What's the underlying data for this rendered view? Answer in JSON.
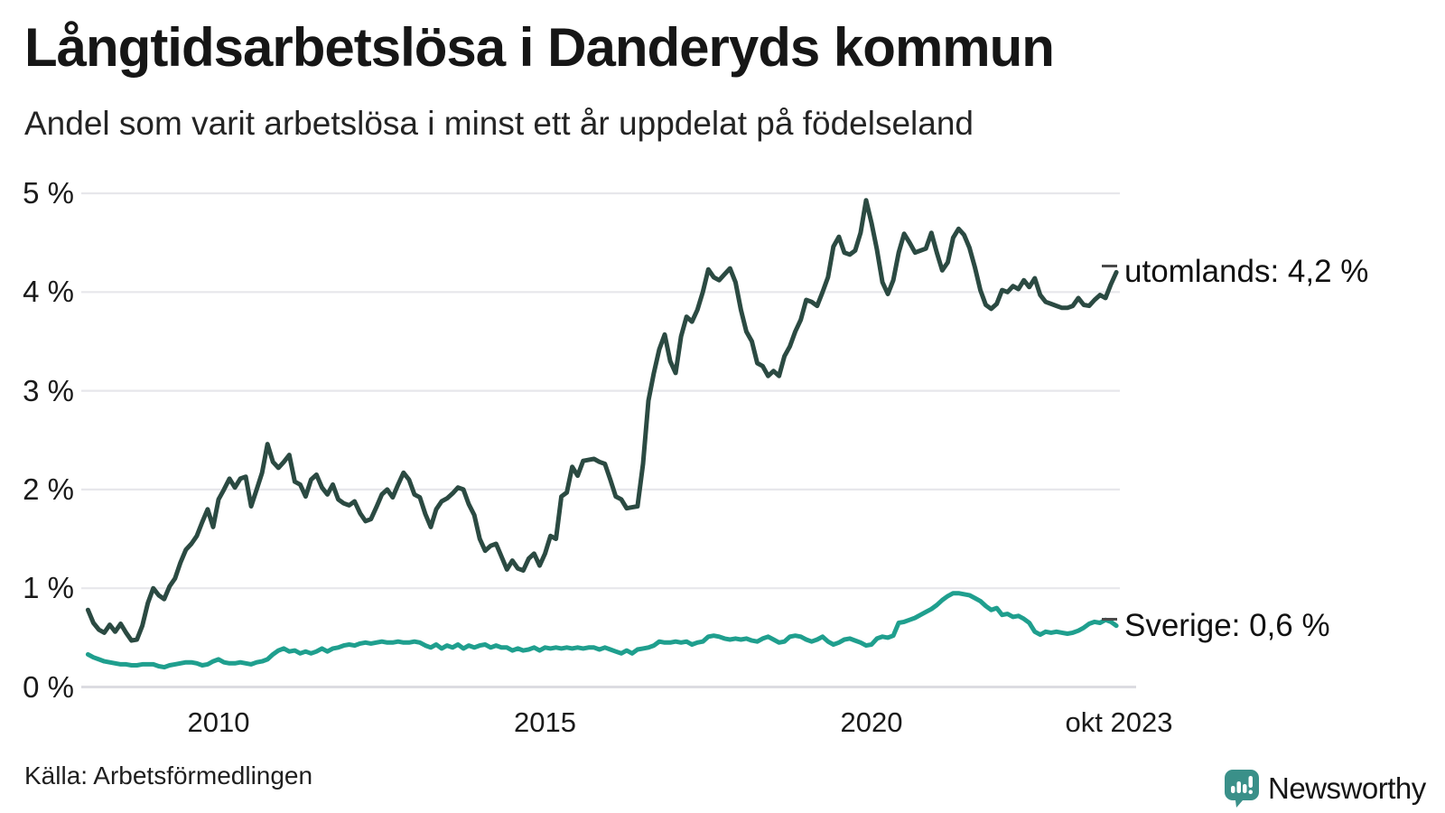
{
  "header": {
    "title": "Långtidsarbetslösa i Danderyds kommun",
    "subtitle": "Andel som varit arbetslösa i minst ett år uppdelat på födelseland"
  },
  "chart_data": {
    "type": "line",
    "frequency": "monthly",
    "x_start": "2008-01",
    "x_end": "2023-10",
    "ylim": [
      0,
      5
    ],
    "grid": true,
    "grid_color": "#e7e7eb",
    "axis_color": "#dcdce1",
    "y_ticks": [
      {
        "label": "0 %",
        "value": 0
      },
      {
        "label": "1 %",
        "value": 1
      },
      {
        "label": "2 %",
        "value": 2
      },
      {
        "label": "3 %",
        "value": 3
      },
      {
        "label": "4 %",
        "value": 4
      },
      {
        "label": "5 %",
        "value": 5
      }
    ],
    "x_ticks": [
      {
        "label": "2010",
        "year": 2010
      },
      {
        "label": "2015",
        "year": 2015
      },
      {
        "label": "2020",
        "year": 2020
      },
      {
        "label": "okt 2023",
        "year": 2023.79
      }
    ],
    "series": [
      {
        "name": "utomlands",
        "label": "utomlands: 4,2 %",
        "end_value_label": "4,2 %",
        "color": "#2b4a42",
        "values": [
          0.78,
          0.65,
          0.58,
          0.55,
          0.63,
          0.56,
          0.64,
          0.55,
          0.47,
          0.48,
          0.62,
          0.85,
          1.0,
          0.93,
          0.89,
          1.02,
          1.1,
          1.26,
          1.39,
          1.45,
          1.53,
          1.67,
          1.8,
          1.62,
          1.9,
          2.0,
          2.11,
          2.02,
          2.11,
          2.13,
          1.83,
          2.0,
          2.17,
          2.46,
          2.28,
          2.22,
          2.28,
          2.35,
          2.08,
          2.05,
          1.93,
          2.1,
          2.15,
          2.02,
          1.95,
          2.05,
          1.9,
          1.86,
          1.84,
          1.88,
          1.76,
          1.68,
          1.7,
          1.82,
          1.95,
          2.0,
          1.92,
          2.05,
          2.17,
          2.1,
          1.95,
          1.92,
          1.75,
          1.62,
          1.8,
          1.88,
          1.91,
          1.96,
          2.02,
          2.0,
          1.85,
          1.74,
          1.5,
          1.38,
          1.43,
          1.45,
          1.32,
          1.19,
          1.28,
          1.2,
          1.18,
          1.3,
          1.35,
          1.23,
          1.35,
          1.53,
          1.5,
          1.93,
          1.97,
          2.23,
          2.14,
          2.29,
          2.3,
          2.31,
          2.28,
          2.26,
          2.1,
          1.93,
          1.9,
          1.81,
          1.82,
          1.83,
          2.26,
          2.9,
          3.18,
          3.42,
          3.57,
          3.3,
          3.18,
          3.55,
          3.75,
          3.7,
          3.82,
          4.0,
          4.23,
          4.15,
          4.12,
          4.18,
          4.24,
          4.1,
          3.82,
          3.6,
          3.5,
          3.28,
          3.25,
          3.15,
          3.2,
          3.15,
          3.35,
          3.45,
          3.6,
          3.72,
          3.92,
          3.9,
          3.86,
          4.0,
          4.15,
          4.46,
          4.56,
          4.4,
          4.38,
          4.42,
          4.6,
          4.93,
          4.7,
          4.43,
          4.1,
          3.98,
          4.12,
          4.4,
          4.59,
          4.5,
          4.4,
          4.42,
          4.44,
          4.6,
          4.4,
          4.22,
          4.3,
          4.55,
          4.64,
          4.58,
          4.45,
          4.25,
          4.02,
          3.87,
          3.83,
          3.88,
          4.02,
          4.0,
          4.06,
          4.03,
          4.12,
          4.05,
          4.14,
          3.97,
          3.9,
          3.88,
          3.86,
          3.84,
          3.84,
          3.86,
          3.94,
          3.87,
          3.86,
          3.92,
          3.97,
          3.94,
          4.08,
          4.2
        ]
      },
      {
        "name": "Sverige",
        "label": "Sverige: 0,6 %",
        "end_value_label": "0,6 %",
        "color": "#1f9f8e",
        "values": [
          0.33,
          0.3,
          0.28,
          0.26,
          0.25,
          0.24,
          0.23,
          0.23,
          0.22,
          0.22,
          0.23,
          0.23,
          0.23,
          0.21,
          0.2,
          0.22,
          0.23,
          0.24,
          0.25,
          0.25,
          0.24,
          0.22,
          0.23,
          0.26,
          0.28,
          0.25,
          0.24,
          0.24,
          0.25,
          0.24,
          0.23,
          0.25,
          0.26,
          0.28,
          0.33,
          0.37,
          0.39,
          0.36,
          0.37,
          0.34,
          0.36,
          0.34,
          0.36,
          0.39,
          0.36,
          0.39,
          0.4,
          0.42,
          0.43,
          0.42,
          0.44,
          0.45,
          0.44,
          0.45,
          0.46,
          0.45,
          0.45,
          0.46,
          0.45,
          0.45,
          0.46,
          0.45,
          0.42,
          0.4,
          0.43,
          0.39,
          0.42,
          0.4,
          0.43,
          0.39,
          0.42,
          0.4,
          0.42,
          0.43,
          0.4,
          0.42,
          0.4,
          0.4,
          0.37,
          0.39,
          0.37,
          0.38,
          0.4,
          0.37,
          0.4,
          0.39,
          0.4,
          0.39,
          0.4,
          0.39,
          0.4,
          0.39,
          0.4,
          0.4,
          0.38,
          0.4,
          0.38,
          0.36,
          0.34,
          0.37,
          0.34,
          0.38,
          0.39,
          0.4,
          0.42,
          0.46,
          0.45,
          0.45,
          0.46,
          0.45,
          0.46,
          0.43,
          0.45,
          0.46,
          0.51,
          0.52,
          0.51,
          0.49,
          0.48,
          0.49,
          0.48,
          0.49,
          0.47,
          0.46,
          0.49,
          0.51,
          0.48,
          0.45,
          0.46,
          0.51,
          0.52,
          0.51,
          0.48,
          0.46,
          0.48,
          0.51,
          0.46,
          0.43,
          0.45,
          0.48,
          0.49,
          0.47,
          0.45,
          0.42,
          0.43,
          0.49,
          0.51,
          0.5,
          0.52,
          0.65,
          0.66,
          0.68,
          0.7,
          0.73,
          0.76,
          0.79,
          0.83,
          0.88,
          0.92,
          0.95,
          0.95,
          0.94,
          0.93,
          0.9,
          0.87,
          0.82,
          0.78,
          0.8,
          0.73,
          0.74,
          0.71,
          0.72,
          0.69,
          0.65,
          0.56,
          0.53,
          0.56,
          0.55,
          0.56,
          0.55,
          0.54,
          0.55,
          0.57,
          0.6,
          0.64,
          0.66,
          0.65,
          0.68,
          0.66,
          0.62
        ]
      }
    ]
  },
  "footer": {
    "source": "Källa: Arbetsförmedlingen",
    "brand": "Newsworthy",
    "brand_color": "#3a9089"
  }
}
